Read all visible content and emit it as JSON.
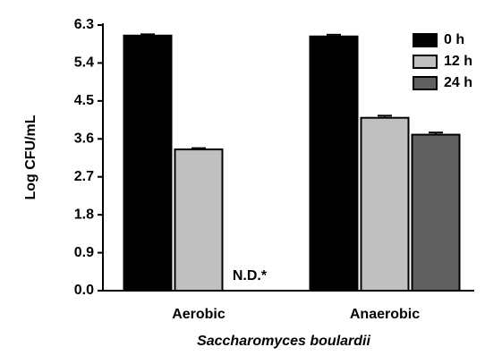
{
  "chart_data": {
    "type": "bar",
    "x_label": "Saccharomyces boulardii",
    "y_label": "Log CFU/mL",
    "categories": [
      "Aerobic",
      "Anaerobic"
    ],
    "series": [
      {
        "name": "0 h",
        "color": "#000000",
        "values": [
          6.05,
          6.03
        ],
        "errors": [
          0.03,
          0.04
        ]
      },
      {
        "name": "12 h",
        "color": "#c0c0c0",
        "values": [
          3.35,
          4.1
        ],
        "errors": [
          0.03,
          0.05
        ]
      },
      {
        "name": "24 h",
        "color": "#606060",
        "values": [
          null,
          3.7
        ],
        "errors": [
          null,
          0.05
        ]
      }
    ],
    "annotations": [
      {
        "text": "N.D.*"
      }
    ],
    "ylim": [
      0,
      6.3
    ],
    "yticks": [
      {
        "value": 0,
        "label": "0.0"
      },
      0.9,
      1.8,
      2.7,
      3.6,
      4.5,
      5.4,
      6.3
    ],
    "legend": "top-right",
    "grid": false
  }
}
